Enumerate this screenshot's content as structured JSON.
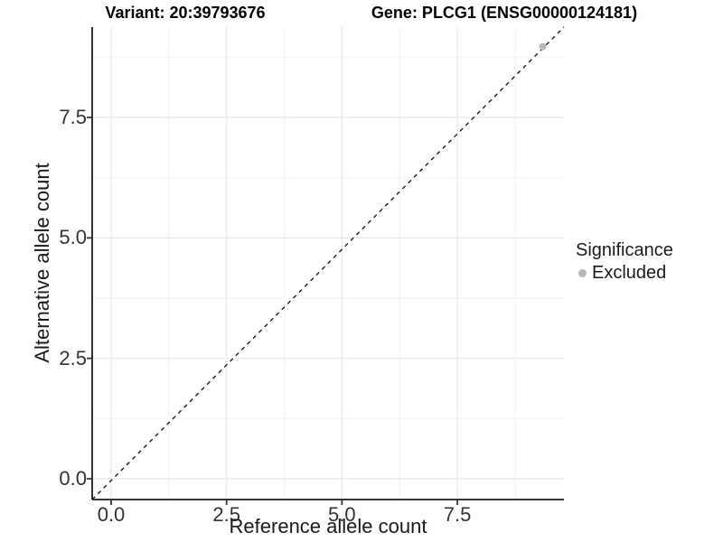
{
  "titles": {
    "variant": "Variant: 20:39793676",
    "gene": "Gene: PLCG1 (ENSG00000124181)"
  },
  "axes": {
    "x": {
      "label": "Reference allele count",
      "tick_labels": [
        "0.0",
        "2.5",
        "5.0",
        "7.5"
      ]
    },
    "y": {
      "label": "Alternative allele count",
      "tick_labels": [
        "0.0",
        "2.5",
        "5.0",
        "7.5"
      ]
    }
  },
  "legend": {
    "title": "Significance",
    "items": [
      {
        "label": "Excluded",
        "color": "#b8b8b8"
      }
    ]
  },
  "colors": {
    "grid_major": "#e8e8e8",
    "grid_minor": "#f4f4f4",
    "axis_line": "#1a1a1a",
    "tick_mark": "#333333",
    "point": "#b8b8b8",
    "dashed_line": "#1a1a1a",
    "background": "#ffffff"
  },
  "chart_data": {
    "type": "scatter",
    "title": "Variant: 20:39793676 — Gene: PLCG1 (ENSG00000124181)",
    "xlabel": "Reference allele count",
    "ylabel": "Alternative allele count",
    "xlim": [
      -0.45,
      9.8
    ],
    "ylim": [
      -0.45,
      9.4
    ],
    "x_ticks": [
      0,
      2.5,
      5,
      7.5
    ],
    "y_ticks": [
      0,
      2.5,
      5,
      7.5
    ],
    "x_minor_ticks": [
      1.25,
      3.75,
      6.25,
      8.75
    ],
    "y_minor_ticks": [
      1.25,
      3.75,
      6.25,
      8.75
    ],
    "grid": "major and minor gridlines, light grey on white panel",
    "legend_position": "right-center",
    "series": [
      {
        "name": "Excluded",
        "color": "#b8b8b8",
        "points": [
          {
            "x": 9.35,
            "y": 8.97
          }
        ]
      }
    ],
    "reference_line": {
      "kind": "identity y=x",
      "style": "dashed",
      "color": "#1a1a1a",
      "from_corner": [
        0,
        0
      ],
      "slope": 1
    }
  }
}
